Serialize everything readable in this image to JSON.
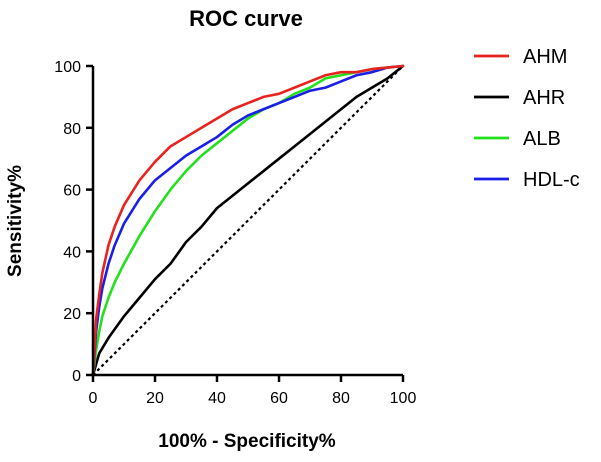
{
  "chart_data": {
    "type": "line",
    "title": "ROC curve",
    "xlabel": "100% - Specificity%",
    "ylabel": "Sensitivity%",
    "xlim": [
      0,
      100
    ],
    "ylim": [
      0,
      100
    ],
    "xticks": [
      0,
      20,
      40,
      60,
      80,
      100
    ],
    "yticks": [
      0,
      20,
      40,
      60,
      80,
      100
    ],
    "legend_position": "right",
    "reference_line": {
      "name": "chance",
      "style": "dotted",
      "color": "#000000",
      "x": [
        0,
        100
      ],
      "y": [
        0,
        100
      ]
    },
    "series": [
      {
        "name": "AHM",
        "color": "#e8231f",
        "x": [
          0,
          1,
          2,
          3,
          5,
          7,
          10,
          15,
          20,
          25,
          30,
          35,
          40,
          45,
          50,
          55,
          60,
          65,
          70,
          75,
          80,
          85,
          90,
          95,
          100
        ],
        "y": [
          0,
          18,
          26,
          33,
          42,
          48,
          55,
          63,
          69,
          74,
          77,
          80,
          83,
          86,
          88,
          90,
          91,
          93,
          95,
          97,
          98,
          98,
          99,
          99.5,
          100
        ]
      },
      {
        "name": "AHR",
        "color": "#000000",
        "x": [
          0,
          2,
          5,
          10,
          15,
          20,
          25,
          30,
          35,
          40,
          45,
          50,
          55,
          60,
          65,
          70,
          75,
          80,
          85,
          90,
          95,
          100
        ],
        "y": [
          0,
          7,
          12,
          19,
          25,
          31,
          36,
          43,
          48,
          54,
          58,
          62,
          66,
          70,
          74,
          78,
          82,
          86,
          90,
          93,
          96,
          100
        ]
      },
      {
        "name": "ALB",
        "color": "#22e01c",
        "x": [
          0,
          1,
          2,
          3,
          5,
          7,
          10,
          15,
          20,
          25,
          30,
          35,
          40,
          45,
          50,
          55,
          60,
          65,
          70,
          75,
          80,
          85,
          90,
          95,
          100
        ],
        "y": [
          0,
          8,
          14,
          19,
          25,
          30,
          36,
          45,
          53,
          60,
          66,
          71,
          75,
          79,
          83,
          86,
          88,
          91,
          93,
          96,
          97,
          98,
          99,
          99.5,
          100
        ]
      },
      {
        "name": "HDL-c",
        "color": "#1a1ee6",
        "x": [
          0,
          1,
          2,
          3,
          5,
          7,
          10,
          15,
          20,
          25,
          30,
          35,
          40,
          45,
          50,
          55,
          60,
          65,
          70,
          75,
          80,
          85,
          90,
          95,
          100
        ],
        "y": [
          0,
          14,
          22,
          28,
          36,
          42,
          49,
          57,
          63,
          67,
          71,
          74,
          77,
          81,
          84,
          86,
          88,
          90,
          92,
          93,
          95,
          97,
          98,
          99.5,
          100
        ]
      }
    ]
  }
}
